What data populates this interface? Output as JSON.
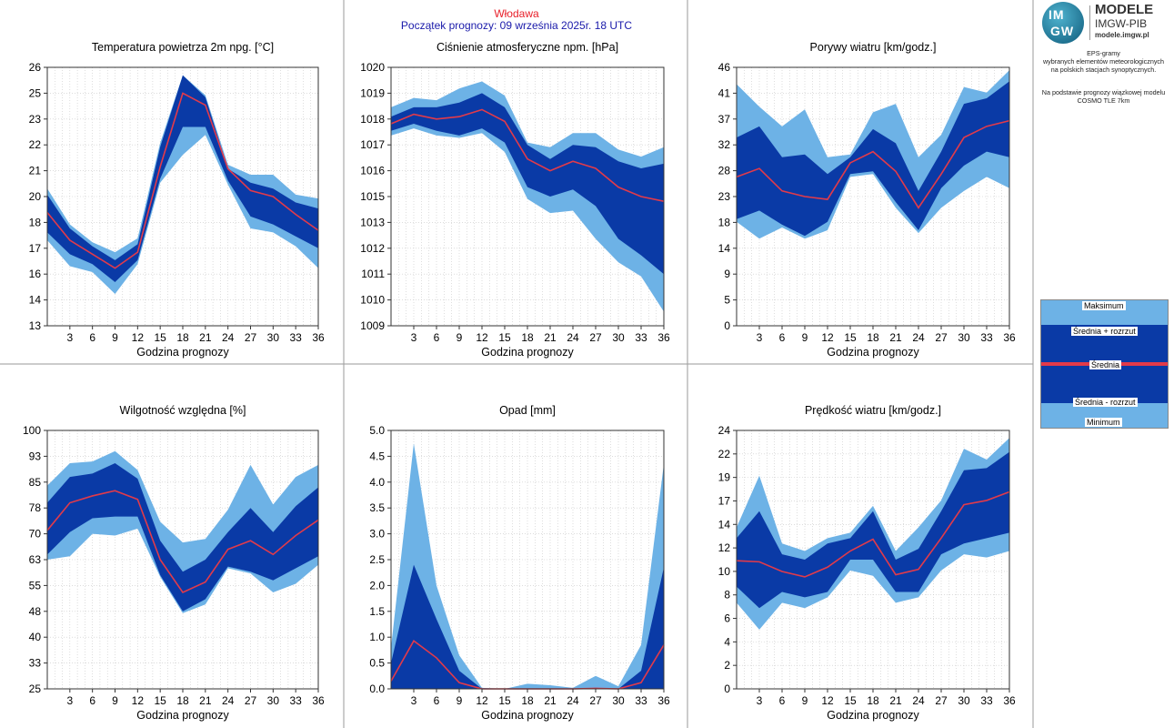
{
  "header": {
    "station": "Włodawa",
    "forecast_start": "Początek prognozy: 09 września 2025r. 18 UTC"
  },
  "logo": {
    "mark_top": "IM",
    "mark_bottom": "GW",
    "line1": "MODELE",
    "line2": "IMGW-PIB",
    "line3": "modele.imgw.pl"
  },
  "sidebar": {
    "lines": [
      "EPS-gramy",
      "wybranych elementów meteorologicznych",
      "na polskich stacjach  synoptycznych.",
      "",
      "Na podstawie prognozy wiązkowej modelu",
      "COSMO TLE 7km"
    ]
  },
  "legend": {
    "items": [
      "Maksimum",
      "Średnia + rozrzut",
      "Średnia",
      "Średnia - rozrzut",
      "Minimum"
    ]
  },
  "colors": {
    "envelope": "#6db2e6",
    "spread": "#0a3aa6",
    "mean": "#e23a4a",
    "frame": "#333333",
    "grid": "#c8c8c8"
  },
  "chart_data": [
    {
      "type": "area",
      "title": "Temperatura powietrza 2m npg. [°C]",
      "xlabel": "Godzina prognozy",
      "x": [
        0,
        3,
        6,
        9,
        12,
        15,
        18,
        21,
        24,
        27,
        30,
        33,
        36
      ],
      "xticks": [
        "3",
        "6",
        "9",
        "12",
        "15",
        "18",
        "21",
        "24",
        "27",
        "30",
        "33",
        "36"
      ],
      "ylim": [
        13,
        26
      ],
      "yticks": [
        "13",
        "14",
        "16",
        "17",
        "18",
        "20",
        "21",
        "22",
        "23",
        "25",
        "26"
      ],
      "series": {
        "max": [
          19.9,
          18.1,
          17.2,
          16.7,
          17.4,
          22.2,
          25.6,
          24.6,
          21.1,
          20.6,
          20.6,
          19.6,
          19.4
        ],
        "upper": [
          19.6,
          17.9,
          17.0,
          16.3,
          17.1,
          22.0,
          25.6,
          24.5,
          20.9,
          20.2,
          19.9,
          19.2,
          18.9
        ],
        "mean": [
          18.7,
          17.3,
          16.6,
          15.9,
          16.7,
          21.0,
          24.7,
          24.1,
          20.9,
          19.8,
          19.5,
          18.6,
          17.8
        ],
        "lower": [
          17.7,
          16.6,
          16.1,
          15.2,
          16.3,
          20.4,
          23.0,
          23.0,
          20.3,
          18.5,
          18.1,
          17.5,
          16.9
        ],
        "min": [
          17.3,
          16.0,
          15.7,
          14.6,
          16.1,
          20.2,
          21.6,
          22.6,
          20.1,
          17.9,
          17.7,
          17.0,
          15.9
        ]
      }
    },
    {
      "type": "area",
      "title": "Ciśnienie atmosferyczne npm. [hPa]",
      "xlabel": "Godzina prognozy",
      "x": [
        0,
        3,
        6,
        9,
        12,
        15,
        18,
        21,
        24,
        27,
        30,
        33,
        36
      ],
      "xticks": [
        "3",
        "6",
        "9",
        "12",
        "15",
        "18",
        "21",
        "24",
        "27",
        "30",
        "33",
        "36"
      ],
      "ylim": [
        1009,
        1020
      ],
      "yticks": [
        "1009",
        "1010",
        "1011",
        "1012",
        "1013",
        "1015",
        "1016",
        "1017",
        "1018",
        "1019",
        "1020"
      ],
      "series": {
        "max": [
          1018.3,
          1018.7,
          1018.6,
          1019.1,
          1019.4,
          1018.8,
          1016.8,
          1016.6,
          1017.2,
          1017.2,
          1016.5,
          1016.2,
          1016.6
        ],
        "upper": [
          1017.9,
          1018.3,
          1018.3,
          1018.5,
          1018.9,
          1018.3,
          1016.7,
          1016.1,
          1016.7,
          1016.6,
          1016.0,
          1015.7,
          1015.9
        ],
        "mean": [
          1017.6,
          1018.0,
          1017.8,
          1017.9,
          1018.2,
          1017.7,
          1016.1,
          1015.6,
          1016.0,
          1015.7,
          1014.9,
          1014.5,
          1014.3
        ],
        "lower": [
          1017.3,
          1017.6,
          1017.3,
          1017.1,
          1017.4,
          1016.8,
          1014.9,
          1014.5,
          1014.8,
          1014.1,
          1012.7,
          1012.0,
          1011.2
        ],
        "min": [
          1017.1,
          1017.4,
          1017.1,
          1017.0,
          1017.2,
          1016.4,
          1014.4,
          1013.8,
          1013.9,
          1012.7,
          1011.7,
          1011.1,
          1009.6
        ]
      }
    },
    {
      "type": "area",
      "title": "Porywy wiatru [km/godz.]",
      "xlabel": "Godzina prognozy",
      "x": [
        0,
        3,
        6,
        9,
        12,
        15,
        18,
        21,
        24,
        27,
        30,
        33,
        36
      ],
      "xticks": [
        "3",
        "6",
        "9",
        "12",
        "15",
        "18",
        "21",
        "24",
        "27",
        "30",
        "33",
        "36"
      ],
      "ylim": [
        0,
        46
      ],
      "yticks": [
        "0",
        "5",
        "9",
        "14",
        "18",
        "23",
        "28",
        "32",
        "37",
        "41",
        "46"
      ],
      "series": {
        "max": [
          43.0,
          39.0,
          35.5,
          38.5,
          30.0,
          30.5,
          38.0,
          39.5,
          30.0,
          34.0,
          42.5,
          41.5,
          45.5
        ],
        "upper": [
          33.5,
          35.5,
          30.0,
          30.5,
          27.0,
          30.0,
          35.0,
          32.5,
          24.0,
          31.0,
          39.5,
          40.5,
          43.5
        ],
        "mean": [
          26.5,
          28.0,
          24.0,
          23.0,
          22.5,
          29.0,
          31.0,
          27.5,
          21.0,
          27.0,
          33.5,
          35.5,
          36.5
        ],
        "lower": [
          19.0,
          20.5,
          18.0,
          16.0,
          18.5,
          27.0,
          27.5,
          22.0,
          17.0,
          24.5,
          28.5,
          31.0,
          30.0
        ],
        "min": [
          18.5,
          15.5,
          17.5,
          15.5,
          17.0,
          26.5,
          27.0,
          21.0,
          16.5,
          21.0,
          24.0,
          26.5,
          24.5
        ]
      }
    },
    {
      "type": "area",
      "title": "Wilgotność względna [%]",
      "xlabel": "Godzina prognozy",
      "x": [
        0,
        3,
        6,
        9,
        12,
        15,
        18,
        21,
        24,
        27,
        30,
        33,
        36
      ],
      "xticks": [
        "3",
        "6",
        "9",
        "12",
        "15",
        "18",
        "21",
        "24",
        "27",
        "30",
        "33",
        "36"
      ],
      "ylim": [
        25,
        100
      ],
      "yticks": [
        "25",
        "33",
        "40",
        "48",
        "55",
        "63",
        "70",
        "78",
        "85",
        "93",
        "100"
      ],
      "series": {
        "max": [
          84.0,
          90.5,
          91.0,
          94.0,
          88.5,
          73.5,
          67.5,
          68.5,
          77.0,
          90.0,
          78.5,
          86.5,
          90.0
        ],
        "upper": [
          79.0,
          86.5,
          87.5,
          90.5,
          86.0,
          68.0,
          59.0,
          62.5,
          70.5,
          77.5,
          70.5,
          78.0,
          83.5
        ],
        "mean": [
          71.0,
          79.0,
          81.0,
          82.5,
          80.0,
          62.5,
          53.0,
          56.0,
          65.5,
          68.0,
          64.0,
          69.5,
          74.0
        ],
        "lower": [
          64.0,
          70.5,
          74.5,
          75.0,
          75.0,
          58.0,
          47.5,
          51.0,
          60.5,
          59.0,
          56.5,
          60.0,
          63.5
        ],
        "min": [
          62.5,
          63.5,
          70.0,
          69.5,
          71.5,
          57.5,
          47.0,
          49.5,
          60.0,
          58.5,
          53.0,
          55.5,
          61.0
        ]
      }
    },
    {
      "type": "area",
      "title": "Opad [mm]",
      "xlabel": "Godzina prognozy",
      "x": [
        0,
        3,
        6,
        9,
        12,
        15,
        18,
        21,
        24,
        27,
        30,
        33,
        36
      ],
      "xticks": [
        "3",
        "6",
        "9",
        "12",
        "15",
        "18",
        "21",
        "24",
        "27",
        "30",
        "33",
        "36"
      ],
      "ylim": [
        0,
        5
      ],
      "yticks": [
        "0.0",
        "0.5",
        "1.0",
        "1.5",
        "2.0",
        "2.5",
        "3.0",
        "3.5",
        "4.0",
        "4.5",
        "5.0"
      ],
      "series": {
        "max": [
          0.8,
          4.75,
          2.0,
          0.65,
          0.02,
          0.0,
          0.1,
          0.07,
          0.02,
          0.25,
          0.05,
          0.85,
          4.35
        ],
        "upper": [
          0.5,
          2.4,
          1.35,
          0.35,
          0.0,
          0.0,
          0.0,
          0.0,
          0.0,
          0.02,
          0.0,
          0.35,
          2.35
        ],
        "mean": [
          0.15,
          0.93,
          0.6,
          0.12,
          0.0,
          0.0,
          0.0,
          0.0,
          0.0,
          0.01,
          0.0,
          0.12,
          0.85
        ],
        "lower": [
          0.0,
          0.0,
          0.0,
          0.0,
          0.0,
          0.0,
          0.0,
          0.0,
          0.0,
          0.0,
          0.0,
          0.0,
          0.0
        ],
        "min": [
          0.0,
          0.0,
          0.0,
          0.0,
          0.0,
          0.0,
          0.0,
          0.0,
          0.0,
          0.0,
          0.0,
          0.0,
          0.0
        ]
      }
    },
    {
      "type": "area",
      "title": "Prędkość wiatru [km/godz.]",
      "xlabel": "Godzina prognozy",
      "x": [
        0,
        3,
        6,
        9,
        12,
        15,
        18,
        21,
        24,
        27,
        30,
        33,
        36
      ],
      "xticks": [
        "3",
        "6",
        "9",
        "12",
        "15",
        "18",
        "21",
        "24",
        "27",
        "30",
        "33",
        "36"
      ],
      "ylim": [
        0,
        24
      ],
      "yticks": [
        "0",
        "2",
        "4",
        "6",
        "8",
        "10",
        "12",
        "14",
        "17",
        "19",
        "22",
        "24"
      ],
      "series": {
        "max": [
          15.0,
          19.8,
          13.5,
          12.8,
          14.0,
          14.5,
          17.0,
          12.8,
          15.0,
          17.5,
          22.3,
          21.3,
          23.3
        ],
        "upper": [
          14.0,
          16.5,
          12.5,
          12.0,
          13.5,
          14.0,
          16.5,
          12.0,
          13.0,
          16.5,
          20.3,
          20.5,
          22.0
        ],
        "mean": [
          11.9,
          11.8,
          10.9,
          10.4,
          11.3,
          12.8,
          13.9,
          10.6,
          11.1,
          14.0,
          17.1,
          17.5,
          18.3
        ],
        "lower": [
          9.5,
          7.5,
          9.0,
          8.5,
          9.0,
          12.0,
          12.0,
          9.0,
          9.0,
          12.5,
          13.5,
          14.0,
          14.5
        ],
        "min": [
          8.0,
          5.5,
          8.0,
          7.5,
          8.5,
          11.0,
          10.5,
          8.0,
          8.5,
          11.0,
          12.5,
          12.2,
          12.8
        ]
      }
    }
  ]
}
